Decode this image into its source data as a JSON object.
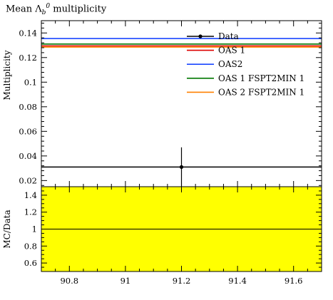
{
  "title": {
    "prefix": "Mean Λ",
    "sub": "b",
    "sup": "0",
    "suffix": " multiplicity"
  },
  "chart_data": [
    {
      "type": "line",
      "panel": "main",
      "ylabel": "Multiplicity",
      "xlim": [
        90.7,
        91.7
      ],
      "ylim": [
        0.015,
        0.15
      ],
      "yticks": [
        0.02,
        0.04,
        0.06,
        0.08,
        0.1,
        0.12,
        0.14
      ],
      "ytick_labels": [
        "0.02",
        "0.04",
        "0.06",
        "0.08",
        "0.1",
        "0.12",
        "0.14"
      ],
      "legend_position": "top-right",
      "data_point": {
        "name": "Data",
        "x": 91.2,
        "y": 0.031,
        "yerr_low": 0.016,
        "yerr_high": 0.016,
        "color": "#000000"
      },
      "series": [
        {
          "name": "Data",
          "value": 0.031,
          "color": "#000000"
        },
        {
          "name": "OAS 1",
          "value": 0.1295,
          "color": "#dd0000"
        },
        {
          "name": "OAS2",
          "value": 0.1355,
          "color": "#1a47ff"
        },
        {
          "name": "OAS 1 FSPT2MIN 1",
          "value": 0.131,
          "color": "#007700"
        },
        {
          "name": "OAS 2 FSPT2MIN 1",
          "value": 0.1285,
          "color": "#ff8000"
        }
      ]
    },
    {
      "type": "line",
      "panel": "ratio",
      "ylabel": "MC/Data",
      "xlim": [
        90.7,
        91.7
      ],
      "ylim": [
        0.5,
        1.5
      ],
      "yticks": [
        0.6,
        0.8,
        1.0,
        1.2,
        1.4
      ],
      "ytick_labels": [
        "0.6",
        "0.8",
        "1",
        "1.2",
        "1.4"
      ],
      "xticks": [
        90.8,
        91.0,
        91.2,
        91.4,
        91.6
      ],
      "xtick_labels": [
        "90.8",
        "91",
        "91.2",
        "91.4",
        "91.6"
      ],
      "band": {
        "low": 0.5,
        "high": 1.5,
        "color": "#ffff00"
      },
      "reference_line": 1.0
    }
  ]
}
